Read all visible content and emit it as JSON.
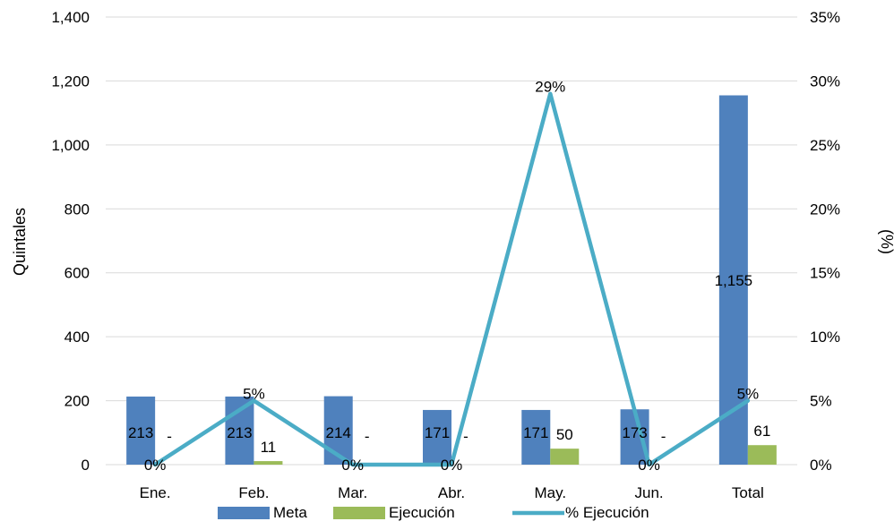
{
  "chart_data": {
    "type": "bar",
    "categories": [
      "Ene.",
      "Feb.",
      "Mar.",
      "Abr.",
      "May.",
      "Jun.",
      "Total"
    ],
    "series": [
      {
        "name": "Meta",
        "kind": "bar",
        "axis": "left",
        "color": "#4F81BD",
        "values": [
          213,
          213,
          214,
          171,
          171,
          173,
          1155
        ],
        "labels": [
          "213",
          "213",
          "214",
          "171",
          "171",
          "173",
          "1,155"
        ]
      },
      {
        "name": "Ejecución",
        "kind": "bar",
        "axis": "left",
        "color": "#9BBB59",
        "values": [
          0,
          11,
          0,
          0,
          50,
          0,
          61
        ],
        "labels": [
          "-",
          "11",
          "-",
          "-",
          "50",
          "-",
          "61"
        ]
      },
      {
        "name": "% Ejecución",
        "kind": "line",
        "axis": "right",
        "color": "#4BACC6",
        "values": [
          0,
          5,
          0,
          0,
          29,
          0,
          5
        ],
        "labels": [
          "0%",
          "5%",
          "0%",
          "0%",
          "29%",
          "0%",
          "5%"
        ]
      }
    ],
    "y_left": {
      "label": "Quintales",
      "min": 0,
      "max": 1400,
      "ticks": [
        0,
        200,
        400,
        600,
        800,
        1000,
        1200,
        1400
      ],
      "tick_labels": [
        "0",
        "200",
        "400",
        "600",
        "800",
        "1,000",
        "1,200",
        "1,400"
      ]
    },
    "y_right": {
      "label": "(%)",
      "min": 0,
      "max": 35,
      "ticks": [
        0,
        5,
        10,
        15,
        20,
        25,
        30,
        35
      ],
      "tick_labels": [
        "0%",
        "5%",
        "10%",
        "15%",
        "20%",
        "25%",
        "30%",
        "35%"
      ]
    },
    "grid": true,
    "legend": "bottom",
    "gridline_color": "#D9D9D9"
  }
}
